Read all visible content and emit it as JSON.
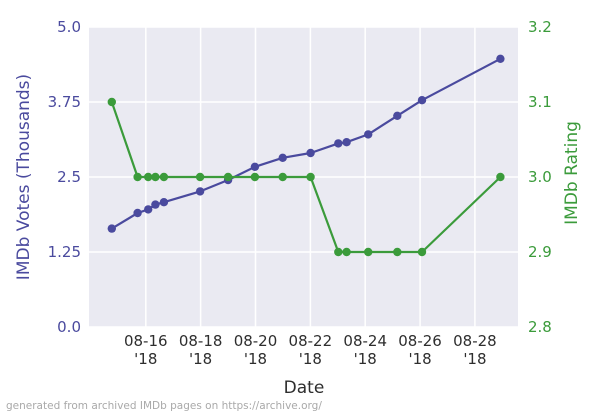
{
  "footer_note": "generated from archived IMDb pages on https://archive.org/",
  "chart_data": {
    "type": "line",
    "title": "",
    "xlabel": "Date",
    "ylabel_left": "IMDb Votes (Thousands)",
    "ylabel_right": "IMDb Rating",
    "x_unit_note": "t = days since 2018-08-14 (axis position)",
    "xlim": [
      0,
      15.64
    ],
    "ylim_left": [
      0.0,
      5.0
    ],
    "ylim_right": [
      2.8,
      3.2
    ],
    "grid": true,
    "legend": "none",
    "x_ticks": [
      {
        "t": 2.07,
        "label": "08-16",
        "year": "'18"
      },
      {
        "t": 4.07,
        "label": "08-18",
        "year": "'18"
      },
      {
        "t": 6.07,
        "label": "08-20",
        "year": "'18"
      },
      {
        "t": 8.07,
        "label": "08-22",
        "year": "'18"
      },
      {
        "t": 10.07,
        "label": "08-24",
        "year": "'18"
      },
      {
        "t": 12.07,
        "label": "08-26",
        "year": "'18"
      },
      {
        "t": 14.07,
        "label": "08-28",
        "year": "'18"
      }
    ],
    "y_ticks_left": [
      {
        "value": 0.0,
        "label": "0.0"
      },
      {
        "value": 1.25,
        "label": "1.25"
      },
      {
        "value": 2.5,
        "label": "2.5"
      },
      {
        "value": 3.75,
        "label": "3.75"
      },
      {
        "value": 5.0,
        "label": "5.0"
      }
    ],
    "y_ticks_right": [
      {
        "value": 2.8,
        "label": "2.8"
      },
      {
        "value": 2.9,
        "label": "2.9"
      },
      {
        "value": 3.0,
        "label": "3.0"
      },
      {
        "value": 3.1,
        "label": "3.1"
      },
      {
        "value": 3.2,
        "label": "3.2"
      }
    ],
    "points": [
      {
        "t": 0.83,
        "date": "08-14 '18",
        "votes_thousands": 1.64,
        "rating": 3.1
      },
      {
        "t": 1.77,
        "date": "08-15 '18",
        "votes_thousands": 1.9,
        "rating": 3.0
      },
      {
        "t": 2.16,
        "date": "08-16 '18",
        "votes_thousands": 1.96,
        "rating": 3.0
      },
      {
        "t": 2.42,
        "date": "08-16 '18",
        "votes_thousands": 2.04,
        "rating": 3.0
      },
      {
        "t": 2.73,
        "date": "08-16 '18",
        "votes_thousands": 2.08,
        "rating": 3.0
      },
      {
        "t": 4.05,
        "date": "08-18 '18",
        "votes_thousands": 2.26,
        "rating": 3.0
      },
      {
        "t": 5.07,
        "date": "08-19 '18",
        "votes_thousands": 2.45,
        "rating": 3.0
      },
      {
        "t": 6.05,
        "date": "08-20 '18",
        "votes_thousands": 2.67,
        "rating": 3.0
      },
      {
        "t": 7.06,
        "date": "08-21 '18",
        "votes_thousands": 2.82,
        "rating": 3.0
      },
      {
        "t": 8.08,
        "date": "08-22 '18",
        "votes_thousands": 2.9,
        "rating": 3.0
      },
      {
        "t": 9.09,
        "date": "08-23 '18",
        "votes_thousands": 3.06,
        "rating": 2.9
      },
      {
        "t": 9.39,
        "date": "08-23 '18",
        "votes_thousands": 3.08,
        "rating": 2.9
      },
      {
        "t": 10.18,
        "date": "08-24 '18",
        "votes_thousands": 3.21,
        "rating": 2.9
      },
      {
        "t": 11.24,
        "date": "08-25 '18",
        "votes_thousands": 3.52,
        "rating": 2.9
      },
      {
        "t": 12.14,
        "date": "08-26 '18",
        "votes_thousands": 3.78,
        "rating": 2.9
      },
      {
        "t": 15.0,
        "date": "08-29 '18",
        "votes_thousands": 4.47,
        "rating": 3.0
      }
    ],
    "colors": {
      "votes_series": "#4a4a9e",
      "rating_series": "#3b9b3b",
      "plot_background": "#eaeaf2",
      "gridline": "#ffffff",
      "x_tick_text": "#2e2e2e",
      "footer_text": "#a9a9a9"
    }
  }
}
